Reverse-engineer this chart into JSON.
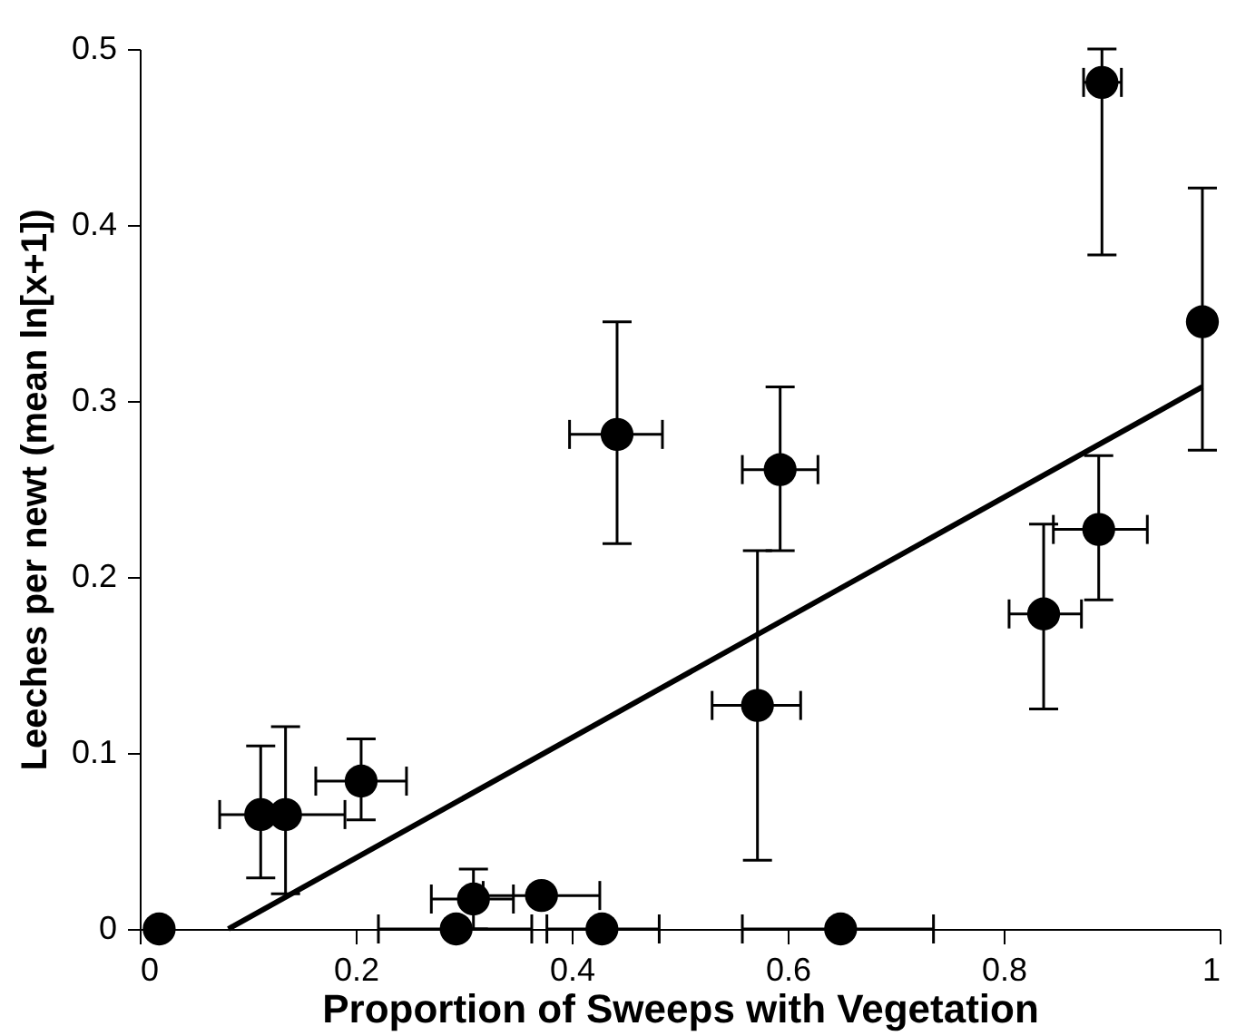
{
  "chart_data": {
    "type": "scatter",
    "xlabel": "Proportion of Sweeps with Vegetation",
    "ylabel": "Leeches per newt (mean ln[x+1])",
    "xlim": [
      0,
      1
    ],
    "ylim": [
      0,
      0.5
    ],
    "xticks": [
      0,
      0.2,
      0.4,
      0.6,
      0.8,
      1
    ],
    "yticks": [
      0,
      0.1,
      0.2,
      0.3,
      0.4,
      0.5
    ],
    "grid": false,
    "marker": "circle",
    "series": [
      {
        "color": "#000000",
        "x": [
          0.018,
          0.112,
          0.135,
          0.205,
          0.293,
          0.309,
          0.372,
          0.428,
          0.442,
          0.593,
          0.572,
          0.649,
          0.891,
          0.984,
          0.888,
          0.837
        ],
        "values": [
          0,
          0.065,
          0.065,
          0.084,
          0,
          0.017,
          0.019,
          0,
          0.281,
          0.261,
          0.127,
          0,
          0.481,
          0.345,
          0.227,
          0.179
        ],
        "errors": [
          null,
          [
            0.029,
            0.104
          ],
          [
            0.02,
            0.115
          ],
          [
            0.062,
            0.108
          ],
          null,
          [
            0,
            0.034
          ],
          null,
          null,
          [
            0.219,
            0.345
          ],
          [
            0.215,
            0.308
          ],
          [
            0.039,
            0.215
          ],
          null,
          [
            0.383,
            0.5
          ],
          [
            0.272,
            0.421
          ],
          [
            0.187,
            0.269
          ],
          [
            0.125,
            0.23
          ]
        ],
        "xerrors": [
          null,
          null,
          [
            0.074,
            0.19
          ],
          [
            0.163,
            0.247
          ],
          [
            0.221,
            0.363
          ],
          [
            0.27,
            0.346
          ],
          [
            0.318,
            0.426
          ],
          [
            0.377,
            0.481
          ],
          [
            0.398,
            0.484
          ],
          [
            0.558,
            0.628
          ],
          [
            0.53,
            0.612
          ],
          [
            0.558,
            0.735
          ],
          [
            0.874,
            0.909
          ],
          null,
          [
            0.846,
            0.933
          ],
          [
            0.805,
            0.872
          ]
        ]
      },
      {
        "type": "line",
        "color": "#000000",
        "line_style": "solid",
        "marker": "none",
        "x": [
          0.082,
          0.984
        ],
        "values": [
          0,
          0.308
        ]
      }
    ]
  }
}
